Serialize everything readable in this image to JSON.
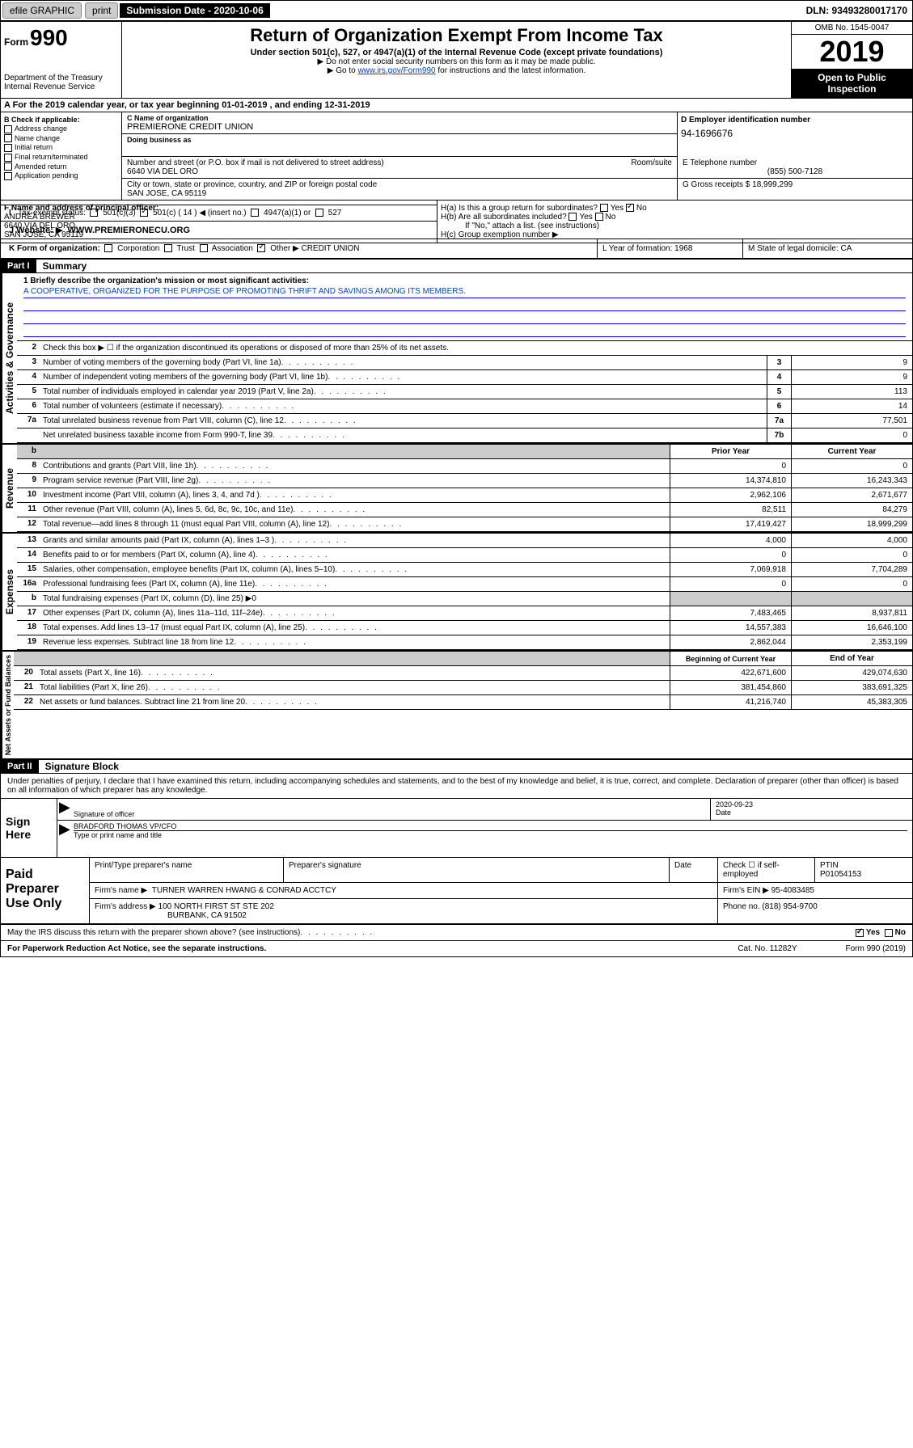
{
  "topbar": {
    "efile": "efile GRAPHIC",
    "print": "print",
    "submission_label": "Submission Date - 2020-10-06",
    "dln": "DLN: 93493280017170"
  },
  "header": {
    "form_prefix": "Form",
    "form_no": "990",
    "dept": "Department of the Treasury\nInternal Revenue Service",
    "title": "Return of Organization Exempt From Income Tax",
    "subtitle": "Under section 501(c), 527, or 4947(a)(1) of the Internal Revenue Code (except private foundations)",
    "note1": "▶ Do not enter social security numbers on this form as it may be made public.",
    "note2_pre": "▶ Go to ",
    "note2_link": "www.irs.gov/Form990",
    "note2_post": " for instructions and the latest information.",
    "omb": "OMB No. 1545-0047",
    "year": "2019",
    "open": "Open to Public Inspection"
  },
  "row_a": "A For the 2019 calendar year, or tax year beginning 01-01-2019    , and ending 12-31-2019",
  "box_b": {
    "title": "B Check if applicable:",
    "opts": [
      "Address change",
      "Name change",
      "Initial return",
      "Final return/terminated",
      "Amended return",
      "Application pending"
    ]
  },
  "box_c": {
    "name_lbl": "C Name of organization",
    "name": "PREMIERONE CREDIT UNION",
    "dba_lbl": "Doing business as",
    "addr_lbl": "Number and street (or P.O. box if mail is not delivered to street address)",
    "room_lbl": "Room/suite",
    "addr": "6640 VIA DEL ORO",
    "city_lbl": "City or town, state or province, country, and ZIP or foreign postal code",
    "city": "SAN JOSE, CA  95119"
  },
  "box_d": {
    "lbl": "D Employer identification number",
    "val": "94-1696676"
  },
  "box_e": {
    "lbl": "E Telephone number",
    "val": "(855) 500-7128"
  },
  "box_g": {
    "lbl": "G Gross receipts $",
    "val": "18,999,299"
  },
  "box_f": {
    "lbl": "F  Name and address of principal officer:",
    "name": "ANDREA BREWER",
    "addr1": "6640 VIA DEL ORO",
    "addr2": "SAN JOSE, CA  95119"
  },
  "box_h": {
    "ha": "H(a)  Is this a group return for subordinates?",
    "hb": "H(b)  Are all subordinates included?",
    "hb_note": "If \"No,\" attach a list. (see instructions)",
    "hc": "H(c)  Group exemption number ▶"
  },
  "tax_status": {
    "lbl": "Tax-exempt status:",
    "c14": "501(c) ( 14 ) ◀ (insert no.)"
  },
  "website": {
    "lbl": "J   Website: ▶",
    "val": "WWW.PREMIERONECU.ORG"
  },
  "row_k": {
    "k": "K Form of organization:",
    "other": "Other ▶",
    "other_val": "CREDIT UNION",
    "l": "L Year of formation: 1968",
    "m": "M State of legal domicile: CA"
  },
  "part1": {
    "hdr": "Part I",
    "title": "Summary",
    "line1_lbl": "1  Briefly describe the organization's mission or most significant activities:",
    "mission": "A COOPERATIVE, ORGANIZED FOR THE PURPOSE OF PROMOTING THRIFT AND SAVINGS AMONG ITS MEMBERS.",
    "gov_label": "Activities & Governance",
    "rev_label": "Revenue",
    "exp_label": "Expenses",
    "net_label": "Net Assets or Fund Balances",
    "lines_gov": [
      {
        "n": "2",
        "d": "Check this box ▶ ☐  if the organization discontinued its operations or disposed of more than 25% of its net assets."
      },
      {
        "n": "3",
        "d": "Number of voting members of the governing body (Part VI, line 1a)",
        "box": "3",
        "v": "9"
      },
      {
        "n": "4",
        "d": "Number of independent voting members of the governing body (Part VI, line 1b)",
        "box": "4",
        "v": "9"
      },
      {
        "n": "5",
        "d": "Total number of individuals employed in calendar year 2019 (Part V, line 2a)",
        "box": "5",
        "v": "113"
      },
      {
        "n": "6",
        "d": "Total number of volunteers (estimate if necessary)",
        "box": "6",
        "v": "14"
      },
      {
        "n": "7a",
        "d": "Total unrelated business revenue from Part VIII, column (C), line 12",
        "box": "7a",
        "v": "77,501"
      },
      {
        "n": "",
        "d": "Net unrelated business taxable income from Form 990-T, line 39",
        "box": "7b",
        "v": "0"
      }
    ],
    "year_hdr": {
      "prior": "Prior Year",
      "current": "Current Year"
    },
    "lines_rev": [
      {
        "n": "8",
        "d": "Contributions and grants (Part VIII, line 1h)",
        "p": "0",
        "c": "0"
      },
      {
        "n": "9",
        "d": "Program service revenue (Part VIII, line 2g)",
        "p": "14,374,810",
        "c": "16,243,343"
      },
      {
        "n": "10",
        "d": "Investment income (Part VIII, column (A), lines 3, 4, and 7d )",
        "p": "2,962,106",
        "c": "2,671,677"
      },
      {
        "n": "11",
        "d": "Other revenue (Part VIII, column (A), lines 5, 6d, 8c, 9c, 10c, and 11e)",
        "p": "82,511",
        "c": "84,279"
      },
      {
        "n": "12",
        "d": "Total revenue—add lines 8 through 11 (must equal Part VIII, column (A), line 12)",
        "p": "17,419,427",
        "c": "18,999,299"
      }
    ],
    "lines_exp": [
      {
        "n": "13",
        "d": "Grants and similar amounts paid (Part IX, column (A), lines 1–3 )",
        "p": "4,000",
        "c": "4,000"
      },
      {
        "n": "14",
        "d": "Benefits paid to or for members (Part IX, column (A), line 4)",
        "p": "0",
        "c": "0"
      },
      {
        "n": "15",
        "d": "Salaries, other compensation, employee benefits (Part IX, column (A), lines 5–10)",
        "p": "7,069,918",
        "c": "7,704,289"
      },
      {
        "n": "16a",
        "d": "Professional fundraising fees (Part IX, column (A), line 11e)",
        "p": "0",
        "c": "0"
      },
      {
        "n": "b",
        "d": "Total fundraising expenses (Part IX, column (D), line 25) ▶0",
        "shade": true
      },
      {
        "n": "17",
        "d": "Other expenses (Part IX, column (A), lines 11a–11d, 11f–24e)",
        "p": "7,483,465",
        "c": "8,937,811"
      },
      {
        "n": "18",
        "d": "Total expenses. Add lines 13–17 (must equal Part IX, column (A), line 25)",
        "p": "14,557,383",
        "c": "16,646,100"
      },
      {
        "n": "19",
        "d": "Revenue less expenses. Subtract line 18 from line 12",
        "p": "2,862,044",
        "c": "2,353,199"
      }
    ],
    "net_hdr": {
      "b": "Beginning of Current Year",
      "e": "End of Year"
    },
    "lines_net": [
      {
        "n": "20",
        "d": "Total assets (Part X, line 16)",
        "p": "422,671,600",
        "c": "429,074,630"
      },
      {
        "n": "21",
        "d": "Total liabilities (Part X, line 26)",
        "p": "381,454,860",
        "c": "383,691,325"
      },
      {
        "n": "22",
        "d": "Net assets or fund balances. Subtract line 21 from line 20",
        "p": "41,216,740",
        "c": "45,383,305"
      }
    ]
  },
  "part2": {
    "hdr": "Part II",
    "title": "Signature Block",
    "decl": "Under penalties of perjury, I declare that I have examined this return, including accompanying schedules and statements, and to the best of my knowledge and belief, it is true, correct, and complete. Declaration of preparer (other than officer) is based on all information of which preparer has any knowledge.",
    "sign_here": "Sign Here",
    "sig_officer_lbl": "Signature of officer",
    "date": "2020-09-23",
    "date_lbl": "Date",
    "officer_name": "BRADFORD THOMAS VP/CFO",
    "type_lbl": "Type or print name and title",
    "paid": "Paid Preparer Use Only",
    "prep_name_lbl": "Print/Type preparer's name",
    "prep_sig_lbl": "Preparer's signature",
    "prep_date_lbl": "Date",
    "check_lbl": "Check ☐ if self-employed",
    "ptin_lbl": "PTIN",
    "ptin": "P01054153",
    "firm_name_lbl": "Firm's name    ▶",
    "firm_name": "TURNER WARREN HWANG & CONRAD ACCTCY",
    "firm_ein_lbl": "Firm's EIN ▶",
    "firm_ein": "95-4083485",
    "firm_addr_lbl": "Firm's address ▶",
    "firm_addr1": "100 NORTH FIRST ST STE 202",
    "firm_addr2": "BURBANK, CA  91502",
    "phone_lbl": "Phone no.",
    "phone": "(818) 954-9700",
    "discuss": "May the IRS discuss this return with the preparer shown above? (see instructions)",
    "paperwork": "For Paperwork Reduction Act Notice, see the separate instructions.",
    "cat": "Cat. No. 11282Y",
    "formfoot": "Form 990 (2019)"
  }
}
